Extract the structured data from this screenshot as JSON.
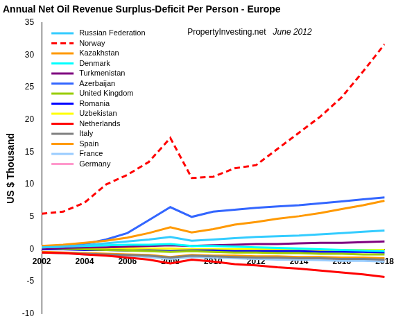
{
  "chart_data": {
    "type": "line",
    "title": "Annual Net Oil Revenue Surplus-Deficit Per Person - Europe",
    "y_label": "US $ Thousand",
    "annotations": [
      "PropertyInvesting.net",
      "June 2012"
    ],
    "x": [
      2002,
      2003,
      2004,
      2005,
      2006,
      2007,
      2008,
      2009,
      2010,
      2011,
      2012,
      2013,
      2014,
      2015,
      2016,
      2017,
      2018
    ],
    "xlim": [
      2002,
      2018
    ],
    "xticks": [
      2002,
      2004,
      2006,
      2008,
      2010,
      2012,
      2014,
      2016,
      2018
    ],
    "ylim": [
      -10,
      35
    ],
    "yticks": [
      -10,
      -5,
      0,
      5,
      10,
      15,
      20,
      25,
      30,
      35
    ],
    "grid": false,
    "legend": "upper left",
    "series": [
      {
        "name": "Russian Federation",
        "color": "#33ccff",
        "values": [
          0.3,
          0.4,
          0.6,
          0.9,
          1.2,
          1.5,
          1.9,
          1.3,
          1.5,
          1.7,
          1.9,
          2.0,
          2.1,
          2.3,
          2.5,
          2.7,
          2.9
        ]
      },
      {
        "name": "Norway",
        "color": "#ff0000",
        "line_style": "dashed",
        "values": [
          5.5,
          5.8,
          7.2,
          10.0,
          11.5,
          13.5,
          17.2,
          11.0,
          11.2,
          12.5,
          13.0,
          15.5,
          18.0,
          20.5,
          23.5,
          27.5,
          31.7
        ]
      },
      {
        "name": "Kazakhstan",
        "color": "#ff9900",
        "values": [
          0.5,
          0.7,
          1.0,
          1.3,
          1.8,
          2.5,
          3.4,
          2.6,
          3.1,
          3.8,
          4.2,
          4.7,
          5.1,
          5.6,
          6.2,
          6.8,
          7.5
        ]
      },
      {
        "name": "Denmark",
        "color": "#00ffff",
        "values": [
          0.3,
          0.4,
          0.5,
          0.6,
          0.7,
          0.7,
          0.8,
          0.5,
          0.5,
          0.4,
          0.3,
          0.2,
          0.1,
          0.0,
          -0.1,
          -0.2,
          -0.3
        ]
      },
      {
        "name": "Turkmenistan",
        "color": "#800080",
        "values": [
          0.1,
          0.2,
          0.3,
          0.3,
          0.4,
          0.5,
          0.6,
          0.5,
          0.6,
          0.7,
          0.8,
          0.8,
          0.9,
          1.0,
          1.0,
          1.1,
          1.2
        ]
      },
      {
        "name": "Azerbaijan",
        "color": "#3366ff",
        "values": [
          0.3,
          0.5,
          0.8,
          1.5,
          2.5,
          4.5,
          6.5,
          5.0,
          5.8,
          6.1,
          6.4,
          6.6,
          6.8,
          7.1,
          7.4,
          7.7,
          8.0
        ]
      },
      {
        "name": "United Kingdom",
        "color": "#99cc00",
        "values": [
          0.2,
          0.1,
          0.0,
          -0.1,
          -0.2,
          -0.3,
          -0.4,
          -0.3,
          -0.4,
          -0.5,
          -0.5,
          -0.6,
          -0.6,
          -0.7,
          -0.7,
          -0.8,
          -0.8
        ]
      },
      {
        "name": "Romania",
        "color": "#0000ff",
        "values": [
          0.0,
          0.0,
          -0.1,
          -0.1,
          -0.2,
          -0.2,
          -0.3,
          -0.2,
          -0.2,
          -0.3,
          -0.3,
          -0.3,
          -0.3,
          -0.4,
          -0.4,
          -0.4,
          -0.5
        ]
      },
      {
        "name": "Uzbekistan",
        "color": "#ffff00",
        "values": [
          0.1,
          0.1,
          0.1,
          0.1,
          0.1,
          0.1,
          0.1,
          0.0,
          0.0,
          0.0,
          0.0,
          0.0,
          -0.1,
          -0.1,
          -0.1,
          -0.1,
          -0.1
        ]
      },
      {
        "name": "Netherlands",
        "color": "#ff0000",
        "values": [
          -0.5,
          -0.6,
          -0.8,
          -1.0,
          -1.3,
          -1.6,
          -2.2,
          -1.6,
          -1.9,
          -2.3,
          -2.5,
          -2.8,
          -3.0,
          -3.3,
          -3.6,
          -3.9,
          -4.3
        ]
      },
      {
        "name": "Italy",
        "color": "#808080",
        "values": [
          -0.5,
          -0.6,
          -0.7,
          -0.8,
          -0.9,
          -1.0,
          -1.3,
          -1.0,
          -1.1,
          -1.2,
          -1.3,
          -1.3,
          -1.4,
          -1.4,
          -1.5,
          -1.5,
          -1.6
        ]
      },
      {
        "name": "Spain",
        "color": "#ff9900",
        "values": [
          -0.4,
          -0.5,
          -0.6,
          -0.7,
          -0.8,
          -0.9,
          -1.2,
          -0.9,
          -1.0,
          -1.0,
          -1.1,
          -1.1,
          -1.2,
          -1.2,
          -1.3,
          -1.3,
          -1.4
        ]
      },
      {
        "name": "France",
        "color": "#99ccff",
        "values": [
          -0.5,
          -0.6,
          -0.8,
          -0.9,
          -1.0,
          -1.2,
          -1.5,
          -1.2,
          -1.3,
          -1.4,
          -1.5,
          -1.6,
          -1.6,
          -1.7,
          -1.8,
          -1.8,
          -1.9
        ]
      },
      {
        "name": "Germany",
        "color": "#ff99cc",
        "values": [
          -0.5,
          -0.6,
          -0.7,
          -0.8,
          -0.9,
          -1.0,
          -1.3,
          -1.0,
          -1.1,
          -1.2,
          -1.3,
          -1.3,
          -1.4,
          -1.4,
          -1.5,
          -1.5,
          -1.6
        ]
      }
    ]
  }
}
